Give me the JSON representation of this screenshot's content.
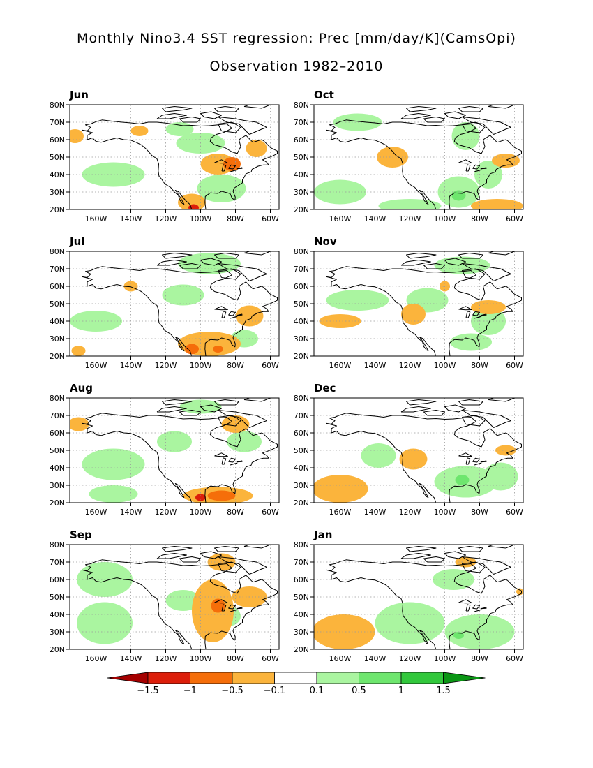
{
  "figure": {
    "title": "Monthly Nino3.4 SST regression: Prec [mm/day/K](CamsOpi)",
    "subtitle": "Observation 1982–2010"
  },
  "chart_data": [
    {
      "type": "map",
      "month": "Jun",
      "lon_range": [
        -175,
        -55
      ],
      "lat_range": [
        20,
        80
      ],
      "xticks": [
        "160W",
        "140W",
        "120W",
        "100W",
        "80W",
        "60W"
      ],
      "yticks": [
        "20N",
        "30N",
        "40N",
        "50N",
        "60N",
        "70N",
        "80N"
      ],
      "features": [
        {
          "lon": -150,
          "lat": 40,
          "rx": 18,
          "ry": 7,
          "value": 0.3
        },
        {
          "lon": -88,
          "lat": 32,
          "rx": 14,
          "ry": 8,
          "value": 0.4
        },
        {
          "lon": -100,
          "lat": 58,
          "rx": 14,
          "ry": 6,
          "value": 0.3
        },
        {
          "lon": -112,
          "lat": 66,
          "rx": 8,
          "ry": 4,
          "value": 0.3
        },
        {
          "lon": -90,
          "lat": 46,
          "rx": 10,
          "ry": 6,
          "value": -0.3
        },
        {
          "lon": -82,
          "lat": 46,
          "rx": 5,
          "ry": 4,
          "value": -0.6
        },
        {
          "lon": -68,
          "lat": 55,
          "rx": 6,
          "ry": 5,
          "value": -0.3
        },
        {
          "lon": -105,
          "lat": 24,
          "rx": 8,
          "ry": 5,
          "value": -0.4
        },
        {
          "lon": -104,
          "lat": 21,
          "rx": 3,
          "ry": 2,
          "value": -1.2
        },
        {
          "lon": -135,
          "lat": 65,
          "rx": 5,
          "ry": 3,
          "value": -0.2
        },
        {
          "lon": -172,
          "lat": 62,
          "rx": 5,
          "ry": 4,
          "value": -0.2
        }
      ]
    },
    {
      "type": "map",
      "month": "Oct",
      "lon_range": [
        -175,
        -55
      ],
      "lat_range": [
        20,
        80
      ],
      "xticks": [
        "160W",
        "140W",
        "120W",
        "100W",
        "80W",
        "60W"
      ],
      "yticks": [
        "20N",
        "30N",
        "40N",
        "50N",
        "60N",
        "70N",
        "80N"
      ],
      "features": [
        {
          "lon": -150,
          "lat": 70,
          "rx": 14,
          "ry": 5,
          "value": 0.3
        },
        {
          "lon": -160,
          "lat": 30,
          "rx": 15,
          "ry": 7,
          "value": 0.3
        },
        {
          "lon": -120,
          "lat": 22,
          "rx": 18,
          "ry": 4,
          "value": 0.3
        },
        {
          "lon": -92,
          "lat": 30,
          "rx": 12,
          "ry": 9,
          "value": 0.3
        },
        {
          "lon": -92,
          "lat": 28,
          "rx": 4,
          "ry": 3,
          "value": 0.7
        },
        {
          "lon": -75,
          "lat": 40,
          "rx": 8,
          "ry": 8,
          "value": 0.3
        },
        {
          "lon": -88,
          "lat": 62,
          "rx": 8,
          "ry": 8,
          "value": 0.3
        },
        {
          "lon": -130,
          "lat": 50,
          "rx": 9,
          "ry": 6,
          "value": -0.3
        },
        {
          "lon": -65,
          "lat": 48,
          "rx": 8,
          "ry": 4,
          "value": -0.3
        },
        {
          "lon": -70,
          "lat": 22,
          "rx": 15,
          "ry": 4,
          "value": -0.3
        }
      ]
    },
    {
      "type": "map",
      "month": "Jul",
      "lon_range": [
        -175,
        -55
      ],
      "lat_range": [
        20,
        80
      ],
      "xticks": [
        "160W",
        "140W",
        "120W",
        "100W",
        "80W",
        "60W"
      ],
      "yticks": [
        "20N",
        "30N",
        "40N",
        "50N",
        "60N",
        "70N",
        "80N"
      ],
      "features": [
        {
          "lon": -95,
          "lat": 73,
          "rx": 18,
          "ry": 6,
          "value": 0.4
        },
        {
          "lon": -160,
          "lat": 40,
          "rx": 15,
          "ry": 6,
          "value": 0.3
        },
        {
          "lon": -110,
          "lat": 55,
          "rx": 12,
          "ry": 6,
          "value": 0.3
        },
        {
          "lon": -75,
          "lat": 30,
          "rx": 8,
          "ry": 5,
          "value": 0.3
        },
        {
          "lon": -95,
          "lat": 27,
          "rx": 18,
          "ry": 7,
          "value": -0.3
        },
        {
          "lon": -105,
          "lat": 24,
          "rx": 4,
          "ry": 3,
          "value": -0.8
        },
        {
          "lon": -90,
          "lat": 24,
          "rx": 3,
          "ry": 2,
          "value": -0.8
        },
        {
          "lon": -72,
          "lat": 43,
          "rx": 8,
          "ry": 6,
          "value": -0.3
        },
        {
          "lon": -140,
          "lat": 60,
          "rx": 4,
          "ry": 3,
          "value": -0.2
        },
        {
          "lon": -170,
          "lat": 23,
          "rx": 4,
          "ry": 3,
          "value": -0.2
        }
      ]
    },
    {
      "type": "map",
      "month": "Nov",
      "lon_range": [
        -175,
        -55
      ],
      "lat_range": [
        20,
        80
      ],
      "xticks": [
        "160W",
        "140W",
        "120W",
        "100W",
        "80W",
        "60W"
      ],
      "yticks": [
        "20N",
        "30N",
        "40N",
        "50N",
        "60N",
        "70N",
        "80N"
      ],
      "features": [
        {
          "lon": -150,
          "lat": 52,
          "rx": 18,
          "ry": 6,
          "value": 0.3
        },
        {
          "lon": -110,
          "lat": 52,
          "rx": 12,
          "ry": 7,
          "value": 0.3
        },
        {
          "lon": -85,
          "lat": 28,
          "rx": 12,
          "ry": 5,
          "value": 0.3
        },
        {
          "lon": -90,
          "lat": 72,
          "rx": 16,
          "ry": 5,
          "value": 0.3
        },
        {
          "lon": -75,
          "lat": 40,
          "rx": 10,
          "ry": 8,
          "value": 0.3
        },
        {
          "lon": -160,
          "lat": 40,
          "rx": 12,
          "ry": 4,
          "value": -0.3
        },
        {
          "lon": -118,
          "lat": 44,
          "rx": 7,
          "ry": 6,
          "value": -0.3
        },
        {
          "lon": -75,
          "lat": 48,
          "rx": 10,
          "ry": 4,
          "value": -0.3
        },
        {
          "lon": -100,
          "lat": 60,
          "rx": 3,
          "ry": 3,
          "value": -0.2
        }
      ]
    },
    {
      "type": "map",
      "month": "Aug",
      "lon_range": [
        -175,
        -55
      ],
      "lat_range": [
        20,
        80
      ],
      "xticks": [
        "160W",
        "140W",
        "120W",
        "100W",
        "80W",
        "60W"
      ],
      "yticks": [
        "20N",
        "30N",
        "40N",
        "50N",
        "60N",
        "70N",
        "80N"
      ],
      "features": [
        {
          "lon": -150,
          "lat": 42,
          "rx": 18,
          "ry": 9,
          "value": 0.3
        },
        {
          "lon": -150,
          "lat": 25,
          "rx": 14,
          "ry": 5,
          "value": 0.3
        },
        {
          "lon": -115,
          "lat": 55,
          "rx": 10,
          "ry": 6,
          "value": 0.3
        },
        {
          "lon": -75,
          "lat": 55,
          "rx": 10,
          "ry": 6,
          "value": 0.3
        },
        {
          "lon": -100,
          "lat": 75,
          "rx": 12,
          "ry": 4,
          "value": 0.4
        },
        {
          "lon": -90,
          "lat": 24,
          "rx": 20,
          "ry": 5,
          "value": -0.3
        },
        {
          "lon": -88,
          "lat": 24,
          "rx": 8,
          "ry": 3,
          "value": -0.7
        },
        {
          "lon": -100,
          "lat": 23,
          "rx": 3,
          "ry": 2,
          "value": -1.1
        },
        {
          "lon": -80,
          "lat": 65,
          "rx": 8,
          "ry": 5,
          "value": -0.3
        },
        {
          "lon": -170,
          "lat": 65,
          "rx": 6,
          "ry": 4,
          "value": -0.3
        }
      ]
    },
    {
      "type": "map",
      "month": "Dec",
      "lon_range": [
        -175,
        -55
      ],
      "lat_range": [
        20,
        80
      ],
      "xticks": [
        "160W",
        "140W",
        "120W",
        "100W",
        "80W",
        "60W"
      ],
      "yticks": [
        "20N",
        "30N",
        "40N",
        "50N",
        "60N",
        "70N",
        "80N"
      ],
      "features": [
        {
          "lon": -138,
          "lat": 47,
          "rx": 10,
          "ry": 7,
          "value": 0.3
        },
        {
          "lon": -88,
          "lat": 32,
          "rx": 18,
          "ry": 9,
          "value": 0.3
        },
        {
          "lon": -90,
          "lat": 33,
          "rx": 4,
          "ry": 3,
          "value": 0.7
        },
        {
          "lon": -68,
          "lat": 35,
          "rx": 10,
          "ry": 8,
          "value": 0.3
        },
        {
          "lon": -160,
          "lat": 28,
          "rx": 16,
          "ry": 8,
          "value": -0.3
        },
        {
          "lon": -118,
          "lat": 45,
          "rx": 8,
          "ry": 6,
          "value": -0.3
        },
        {
          "lon": -65,
          "lat": 50,
          "rx": 6,
          "ry": 3,
          "value": -0.3
        }
      ]
    },
    {
      "type": "map",
      "month": "Sep",
      "lon_range": [
        -175,
        -55
      ],
      "lat_range": [
        20,
        80
      ],
      "xticks": [
        "160W",
        "140W",
        "120W",
        "100W",
        "80W",
        "60W"
      ],
      "yticks": [
        "20N",
        "30N",
        "40N",
        "50N",
        "60N",
        "70N",
        "80N"
      ],
      "features": [
        {
          "lon": -155,
          "lat": 60,
          "rx": 16,
          "ry": 10,
          "value": 0.3
        },
        {
          "lon": -155,
          "lat": 35,
          "rx": 16,
          "ry": 12,
          "value": 0.3
        },
        {
          "lon": -110,
          "lat": 48,
          "rx": 10,
          "ry": 6,
          "value": 0.3
        },
        {
          "lon": -85,
          "lat": 39,
          "rx": 8,
          "ry": 6,
          "value": 0.3
        },
        {
          "lon": -93,
          "lat": 42,
          "rx": 12,
          "ry": 18,
          "value": -0.3
        },
        {
          "lon": -90,
          "lat": 45,
          "rx": 4,
          "ry": 4,
          "value": -0.6
        },
        {
          "lon": -72,
          "lat": 50,
          "rx": 10,
          "ry": 6,
          "value": -0.3
        },
        {
          "lon": -88,
          "lat": 70,
          "rx": 8,
          "ry": 5,
          "value": -0.3
        }
      ]
    },
    {
      "type": "map",
      "month": "Jan",
      "lon_range": [
        -175,
        -55
      ],
      "lat_range": [
        20,
        80
      ],
      "xticks": [
        "160W",
        "140W",
        "120W",
        "100W",
        "80W",
        "60W"
      ],
      "yticks": [
        "20N",
        "30N",
        "40N",
        "50N",
        "60N",
        "70N",
        "80N"
      ],
      "features": [
        {
          "lon": -120,
          "lat": 35,
          "rx": 20,
          "ry": 12,
          "value": 0.3
        },
        {
          "lon": -80,
          "lat": 30,
          "rx": 20,
          "ry": 10,
          "value": 0.3
        },
        {
          "lon": -92,
          "lat": 28,
          "rx": 3,
          "ry": 2,
          "value": 0.6
        },
        {
          "lon": -95,
          "lat": 60,
          "rx": 12,
          "ry": 6,
          "value": 0.3
        },
        {
          "lon": -158,
          "lat": 30,
          "rx": 18,
          "ry": 10,
          "value": -0.3
        },
        {
          "lon": -88,
          "lat": 70,
          "rx": 6,
          "ry": 3,
          "value": -0.3
        },
        {
          "lon": -57,
          "lat": 53,
          "rx": 2,
          "ry": 2,
          "value": -0.3
        }
      ]
    }
  ],
  "colorbar": {
    "labels": [
      "−1.5",
      "−1",
      "−0.5",
      "−0.1",
      "0.1",
      "0.5",
      "1",
      "1.5"
    ],
    "levels": [
      -1.5,
      -1,
      -0.5,
      -0.1,
      0.1,
      0.5,
      1,
      1.5
    ],
    "colors": [
      "#a50000",
      "#dc1e0a",
      "#f56e0a",
      "#fbb43c",
      "#ffffff",
      "#aaf5a0",
      "#6ee66e",
      "#32c83c",
      "#0a9614"
    ]
  }
}
